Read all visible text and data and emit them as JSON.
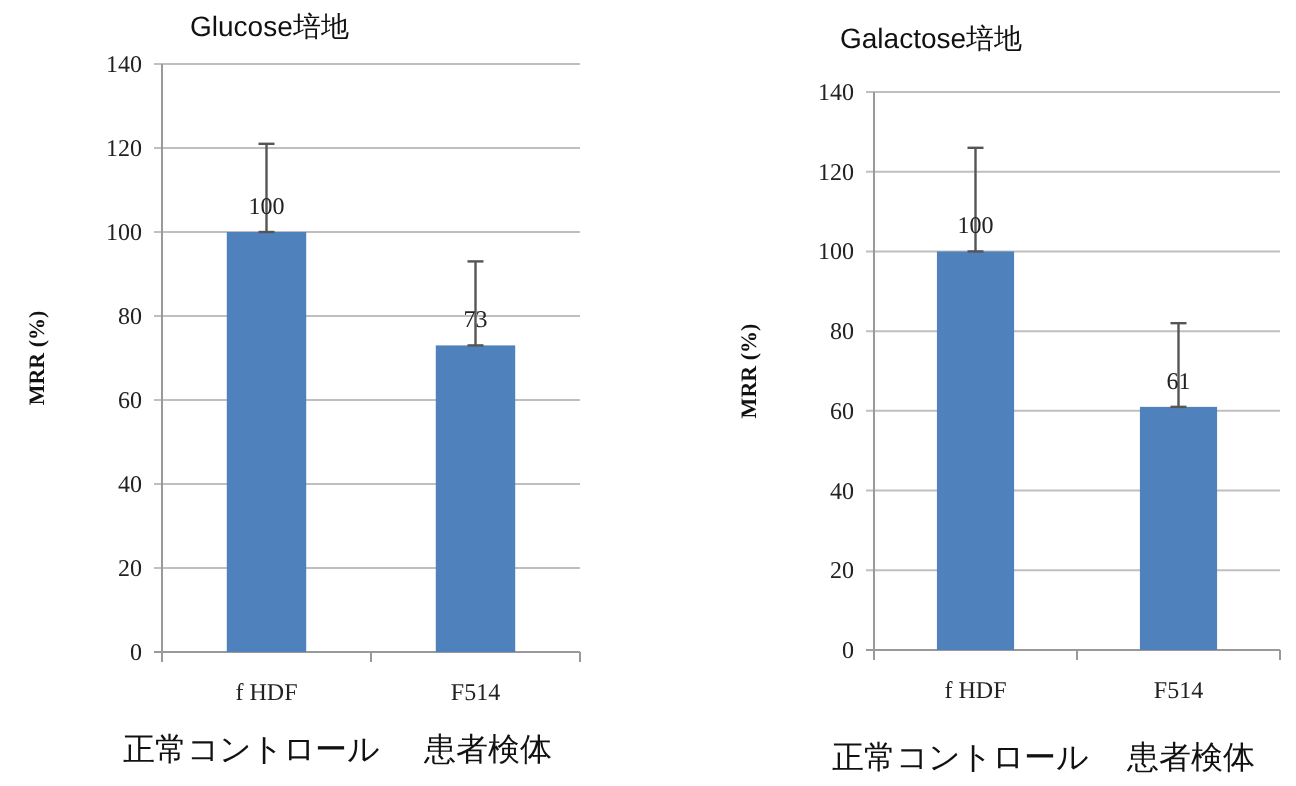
{
  "chart_data": [
    {
      "type": "bar",
      "title": "Glucose培地",
      "ylabel": "MRR (%)",
      "categories": [
        "f HDF",
        "F514"
      ],
      "values": [
        100,
        73
      ],
      "errors": [
        [
          100,
          121
        ],
        [
          73,
          93
        ]
      ],
      "color": "#4f81bd",
      "data_labels": true,
      "ylim": [
        0,
        140
      ],
      "yticks": [
        0,
        20,
        40,
        60,
        80,
        100,
        120,
        140
      ],
      "grid": "y",
      "annotations": [
        "正常コントロール",
        "患者検体"
      ]
    },
    {
      "type": "bar",
      "title": "Galactose培地",
      "ylabel": "MRR (%)",
      "categories": [
        "f HDF",
        "F514"
      ],
      "values": [
        100,
        61
      ],
      "errors": [
        [
          100,
          126
        ],
        [
          61,
          82
        ]
      ],
      "color": "#4f81bd",
      "data_labels": true,
      "ylim": [
        0,
        140
      ],
      "yticks": [
        0,
        20,
        40,
        60,
        80,
        100,
        120,
        140
      ],
      "grid": "y",
      "annotations": [
        "正常コントロール",
        "患者検体"
      ]
    }
  ]
}
